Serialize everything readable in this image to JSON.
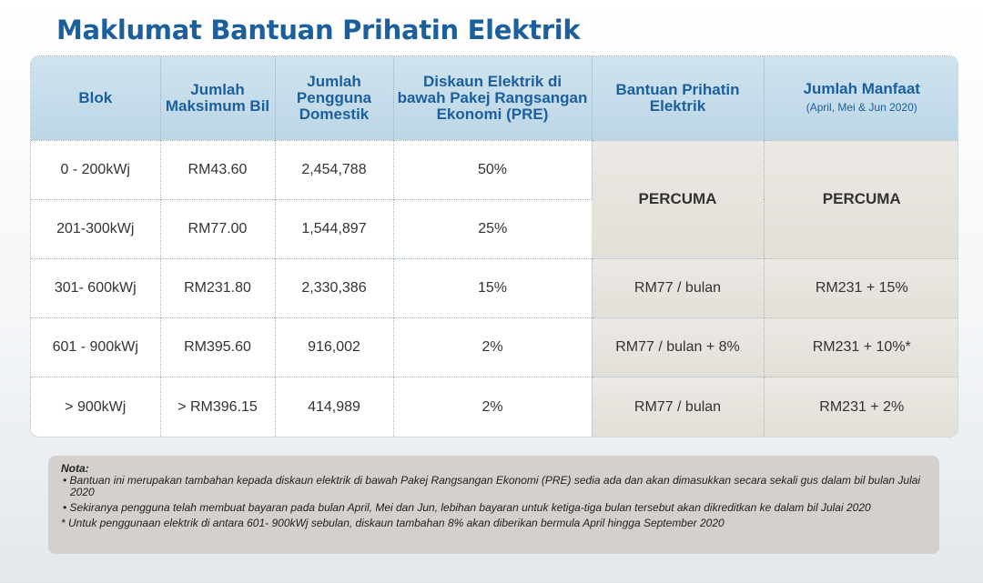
{
  "title": "Maklumat Bantuan Prihatin Elektrik",
  "table": {
    "headers": {
      "blok": "Blok",
      "max_bil": "Jumlah Maksimum Bil",
      "pengguna": "Jumlah Pengguna Domestik",
      "diskaun": "Diskaun Elektrik di bawah Pakej Rangsangan Ekonomi (PRE)",
      "bantuan": "Bantuan Prihatin Elektrik",
      "manfaat": "Jumlah Manfaat",
      "manfaat_sub": "(April, Mei & Jun 2020)"
    },
    "rows": [
      {
        "blok": "0 - 200kWj",
        "max_bil": "RM43.60",
        "pengguna": "2,454,788",
        "diskaun": "50%"
      },
      {
        "blok": "201-300kWj",
        "max_bil": "RM77.00",
        "pengguna": "1,544,897",
        "diskaun": "25%"
      },
      {
        "blok": "301- 600kWj",
        "max_bil": "RM231.80",
        "pengguna": "2,330,386",
        "diskaun": "15%",
        "bantuan": "RM77 / bulan",
        "manfaat": "RM231 + 15%"
      },
      {
        "blok": "601 - 900kWj",
        "max_bil": "RM395.60",
        "pengguna": "916,002",
        "diskaun": "2%",
        "bantuan": "RM77 / bulan + 8%",
        "manfaat": "RM231 + 10%*"
      },
      {
        "blok": "> 900kWj",
        "max_bil": "> RM396.15",
        "pengguna": "414,989",
        "diskaun": "2%",
        "bantuan": "RM77 / bulan",
        "manfaat": "RM231 + 2%"
      }
    ],
    "percuma_bantuan": "PERCUMA",
    "percuma_manfaat": "PERCUMA"
  },
  "notes": {
    "heading": "Nota:",
    "items": [
      "• Bantuan ini merupakan tambahan kepada diskaun elektrik di bawah Pakej Rangsangan Ekonomi (PRE) sedia ada dan akan dimasukkan secara sekali gus dalam bil bulan Julai 2020",
      "• Sekiranya pengguna telah membuat bayaran pada bulan April, Mei dan Jun, lebihan bayaran untuk ketiga-tiga bulan tersebut akan dikreditkan ke dalam bil Julai 2020",
      "* Untuk penggunaan elektrik di antara 601- 900kWj sebulan, diskaun tambahan 8% akan diberikan bermula April hingga September 2020"
    ]
  }
}
